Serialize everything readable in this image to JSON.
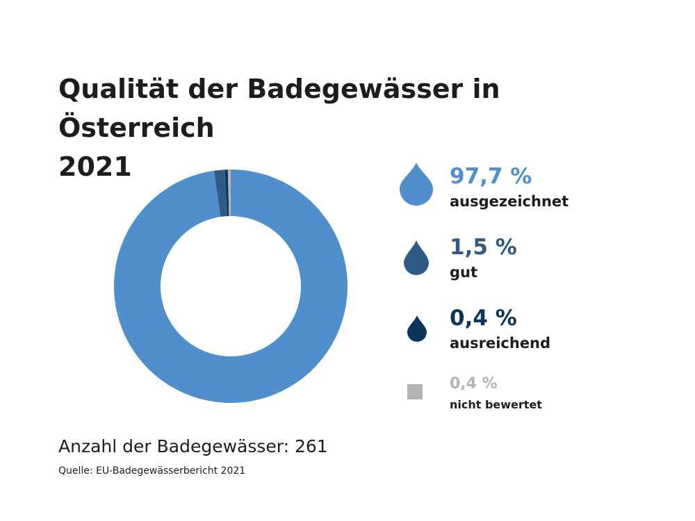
{
  "title_line1": "Qualität der Badegewässer in Österreich",
  "title_line2": "2021",
  "footer": {
    "count_text": "Anzahl der Badegewässer: 261",
    "source_text": "Quelle: EU-Badegewässerbericht 2021"
  },
  "chart_data": {
    "type": "pie",
    "variant": "donut",
    "title": "Qualität der Badegewässer in Österreich 2021",
    "total_count": 261,
    "unit": "%",
    "start": "top",
    "direction": "clockwise",
    "legend_placement": "right",
    "slices": [
      {
        "label": "ausgezeichnet",
        "value": 97.7,
        "value_text": "97,7 %",
        "color": "#4f8fcb",
        "icon": "water-drop-icon"
      },
      {
        "label": "gut",
        "value": 1.5,
        "value_text": "1,5 %",
        "color": "#2e5a83",
        "icon": "water-drop-icon"
      },
      {
        "label": "ausreichend",
        "value": 0.4,
        "value_text": "0,4 %",
        "color": "#0b3558",
        "icon": "water-drop-icon"
      },
      {
        "label": "nicht bewertet",
        "value": 0.4,
        "value_text": "0,4 %",
        "color": "#b3b3b3",
        "icon": "square-icon"
      }
    ]
  }
}
